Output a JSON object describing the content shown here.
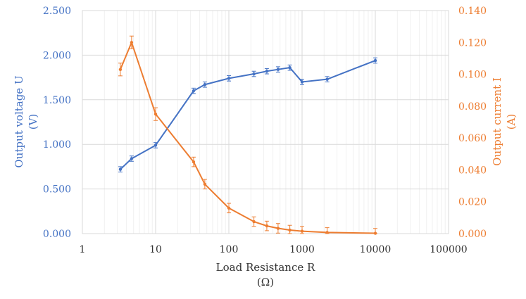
{
  "chart_data": {
    "type": "line",
    "x_scale": "log",
    "xlim": [
      1,
      100000
    ],
    "x_ticks": [
      "1",
      "10",
      "100",
      "1000",
      "10000",
      "100000"
    ],
    "xlabel": "Load Resistance R",
    "xlabel_unit": "(Ω)",
    "ylabel_left": "Output voltage U",
    "ylabel_left_unit": "(V)",
    "ylabel_right": "Output current I",
    "ylabel_right_unit": "(A)",
    "ylim_left": [
      0,
      2.5
    ],
    "ylim_right": [
      0,
      0.14
    ],
    "y_ticks_left": [
      "0.000",
      "0.500",
      "1.000",
      "1.500",
      "2.000",
      "2.500"
    ],
    "y_ticks_right": [
      "0.000",
      "0.020",
      "0.040",
      "0.060",
      "0.080",
      "0.100",
      "0.120",
      "0.140"
    ],
    "grid": true,
    "series": [
      {
        "axis": "left",
        "color": "#4472C4",
        "x": [
          3.3,
          4.7,
          10,
          33,
          47,
          100,
          220,
          330,
          470,
          680,
          1000,
          2200,
          10000
        ],
        "y": [
          0.72,
          0.84,
          0.99,
          1.6,
          1.67,
          1.74,
          1.79,
          1.82,
          1.84,
          1.86,
          1.7,
          1.73,
          1.94
        ],
        "error": [
          0.03,
          0.03,
          0.03,
          0.03,
          0.03,
          0.03,
          0.03,
          0.03,
          0.03,
          0.03,
          0.03,
          0.03,
          0.03
        ]
      },
      {
        "axis": "right",
        "color": "#ED7D31",
        "x": [
          3.3,
          4.7,
          10,
          33,
          47,
          100,
          220,
          330,
          470,
          680,
          1000,
          2200,
          10000
        ],
        "y": [
          0.103,
          0.12,
          0.075,
          0.045,
          0.031,
          0.016,
          0.0075,
          0.0048,
          0.0033,
          0.0022,
          0.0015,
          0.0007,
          0.0002
        ],
        "error": [
          0.004,
          0.004,
          0.004,
          0.003,
          0.003,
          0.003,
          0.003,
          0.003,
          0.003,
          0.003,
          0.003,
          0.003,
          0.003
        ]
      }
    ]
  }
}
